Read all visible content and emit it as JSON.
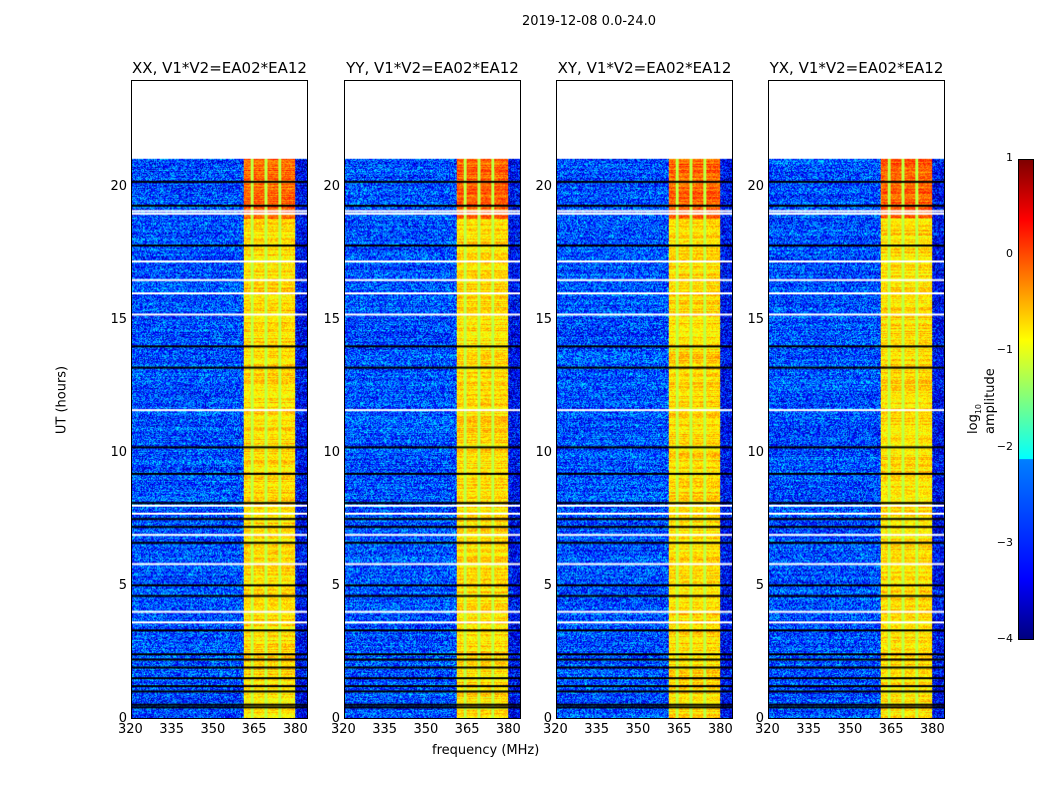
{
  "chart_data": {
    "type": "heatmap",
    "title": "2019-12-08 0.0-24.0",
    "xlabel": "frequency (MHz)",
    "ylabel": "UT (hours)",
    "xlim": [
      320,
      384.4
    ],
    "ylim": [
      0,
      24
    ],
    "data_time_range": [
      0,
      21.1
    ],
    "xticks": [
      "320",
      "335",
      "350",
      "365",
      "380"
    ],
    "xtick_values": [
      320,
      335,
      350,
      365,
      380
    ],
    "yticks": [
      "0",
      "5",
      "10",
      "15",
      "20"
    ],
    "ytick_values": [
      0,
      5,
      10,
      15,
      20
    ],
    "colormap": "jet",
    "colorbar": {
      "label": "log10 amplitude",
      "label_main": "log",
      "label_sub": "10",
      "label_rest": " amplitude",
      "range": [
        -4,
        1
      ],
      "ticks": [
        "−4",
        "−3",
        "−2",
        "−1",
        "0",
        "1"
      ],
      "tick_values": [
        -4,
        -3,
        -2,
        -1,
        0,
        1
      ]
    },
    "background_level": -3,
    "bright_band": {
      "freq_range": [
        361,
        380
      ],
      "level": -0.7
    },
    "flagged_white_hours": [
      3.6,
      4.0,
      5.8,
      6.9,
      7.7,
      8.0,
      11.6,
      15.2,
      16.0,
      16.5,
      17.2,
      19.0,
      19.1
    ],
    "flagged_black_hours": [
      0.4,
      0.5,
      1.0,
      1.2,
      1.5,
      1.9,
      2.2,
      2.4,
      3.3,
      4.6,
      5.0,
      6.6,
      7.2,
      7.5,
      8.1,
      9.2,
      10.2,
      13.2,
      14.0,
      17.8,
      19.3,
      20.2
    ],
    "panels": [
      {
        "title": "XX, V1*V2=EA02*EA12",
        "seed": 1
      },
      {
        "title": "YY, V1*V2=EA02*EA12",
        "seed": 2
      },
      {
        "title": "XY, V1*V2=EA02*EA12",
        "seed": 3
      },
      {
        "title": "YX, V1*V2=EA02*EA12",
        "seed": 4
      }
    ]
  }
}
